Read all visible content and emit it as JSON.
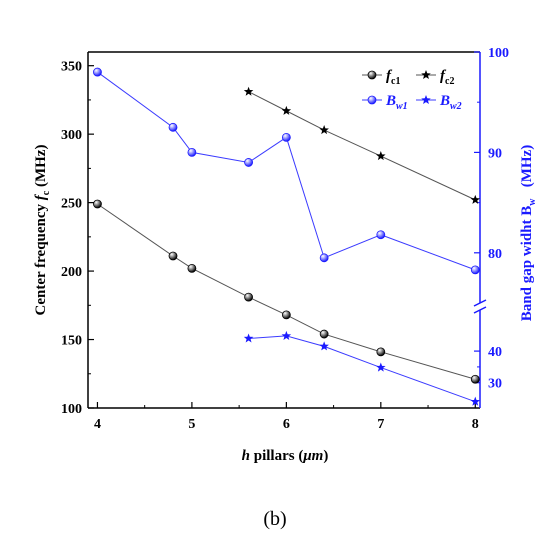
{
  "caption": "(b)",
  "chart_data": {
    "type": "line",
    "xlabel_prefix": "h",
    "xlabel_text": " pillars (",
    "xlabel_unit": "μm",
    "xlabel_suffix": ")",
    "ylabel_left_text": "Center frequency ",
    "ylabel_left_sym": "f",
    "ylabel_left_sub": "c",
    "ylabel_left_unit": " (MHz)",
    "ylabel_right_text": "Band gap widht B",
    "ylabel_right_sub": "w",
    "ylabel_right_unit": "   (MHz)",
    "xlim": [
      3.9,
      8.05
    ],
    "xticks": [
      "4",
      "5",
      "6",
      "7",
      "8"
    ],
    "ylim_left": [
      100,
      360
    ],
    "yticks_left": [
      "100",
      "150",
      "200",
      "250",
      "300",
      "350"
    ],
    "right_axis_upper": {
      "ylim": [
        75,
        100
      ],
      "ticks": [
        "80",
        "90",
        "100"
      ]
    },
    "right_axis_lower": {
      "ylim": [
        22,
        53
      ],
      "ticks": [
        "30",
        "40"
      ]
    },
    "colors": {
      "black_series": "#000000",
      "blue_series": "#1a1aff",
      "blue_line": "#3b3bff",
      "axis_right": "#1a1aff"
    },
    "series": [
      {
        "name": "f",
        "sub": "c1",
        "axis": "left",
        "marker": "ball",
        "color": "#000000",
        "x": [
          4,
          4.8,
          5,
          5.6,
          6,
          6.4,
          7,
          8
        ],
        "y": [
          249,
          211,
          202,
          181,
          168,
          154,
          141,
          121
        ]
      },
      {
        "name": "f",
        "sub": "c2",
        "axis": "left",
        "marker": "star",
        "color": "#000000",
        "x": [
          5.6,
          6,
          6.4,
          7,
          8
        ],
        "y": [
          331,
          317,
          303,
          284,
          252
        ]
      },
      {
        "name": "B",
        "sub": "w1",
        "axis": "right-upper",
        "marker": "ball",
        "color": "#1a1aff",
        "x": [
          4,
          4.8,
          5,
          5.6,
          6,
          6.4,
          7,
          8
        ],
        "y": [
          98,
          92.5,
          90,
          89,
          91.5,
          79.5,
          81.8,
          78.3
        ]
      },
      {
        "name": "B",
        "sub": "w2",
        "axis": "right-lower",
        "marker": "star",
        "color": "#1a1aff",
        "x": [
          5.6,
          6,
          6.4,
          7,
          8
        ],
        "y": [
          44,
          44.8,
          41.5,
          34.8,
          24
        ]
      }
    ],
    "legend_placement": "top-right",
    "grid": false
  }
}
